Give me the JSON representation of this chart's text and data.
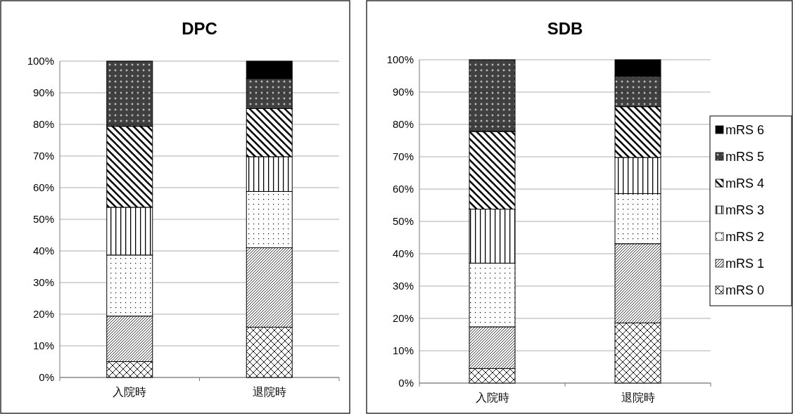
{
  "chart_data": [
    {
      "type": "bar",
      "title": "DPC",
      "categories": [
        "入院時",
        "退院時"
      ],
      "stacked": true,
      "legend": false,
      "grid": "y",
      "ylim": [
        0,
        100
      ],
      "yticks": [
        {
          "value": 0,
          "label": "0%"
        },
        {
          "value": 10,
          "label": "10%"
        },
        {
          "value": 20,
          "label": "20%"
        },
        {
          "value": 30,
          "label": "30%"
        },
        {
          "value": 40,
          "label": "40%"
        },
        {
          "value": 50,
          "label": "50%"
        },
        {
          "value": 60,
          "label": "60%"
        },
        {
          "value": 70,
          "label": "70%"
        },
        {
          "value": 80,
          "label": "80%"
        },
        {
          "value": 90,
          "label": "90%"
        },
        {
          "value": 100,
          "label": "100%"
        }
      ],
      "series": [
        {
          "color": "#000000",
          "values": [
            5,
            15.9
          ]
        },
        {
          "color": "#000000",
          "values": [
            14.4,
            25.1
          ]
        },
        {
          "color": "#000000",
          "values": [
            19.3,
            17.8
          ]
        },
        {
          "color": "#000000",
          "values": [
            15.1,
            11.0
          ]
        },
        {
          "color": "#000000",
          "values": [
            25.6,
            15.2
          ]
        },
        {
          "color": "#000000",
          "values": [
            20.6,
            9.5
          ]
        },
        {
          "color": "#000000",
          "values": [
            0,
            5.5
          ]
        }
      ]
    },
    {
      "type": "bar",
      "title": "SDB",
      "categories": [
        "入院時",
        "退院時"
      ],
      "stacked": true,
      "legend": "right",
      "grid": "y",
      "ylim": [
        0,
        100
      ],
      "yticks": [
        {
          "value": 0,
          "label": "0%"
        },
        {
          "value": 10,
          "label": "10%"
        },
        {
          "value": 20,
          "label": "20%"
        },
        {
          "value": 30,
          "label": "30%"
        },
        {
          "value": 40,
          "label": "40%"
        },
        {
          "value": 50,
          "label": "50%"
        },
        {
          "value": 60,
          "label": "60%"
        },
        {
          "value": 70,
          "label": "70%"
        },
        {
          "value": 80,
          "label": "80%"
        },
        {
          "value": 90,
          "label": "90%"
        },
        {
          "value": 100,
          "label": "100%"
        }
      ],
      "series": [
        {
          "name": "mRS 0",
          "color": "#000000",
          "values": [
            4.5,
            18.6
          ]
        },
        {
          "name": "mRS 1",
          "color": "#000000",
          "values": [
            12.9,
            24.5
          ]
        },
        {
          "name": "mRS 2",
          "color": "#000000",
          "values": [
            19.7,
            15.5
          ]
        },
        {
          "name": "mRS 3",
          "color": "#000000",
          "values": [
            16.7,
            11.2
          ]
        },
        {
          "name": "mRS 4",
          "color": "#000000",
          "values": [
            24.0,
            15.7
          ]
        },
        {
          "name": "mRS 5",
          "color": "#000000",
          "values": [
            22.2,
            9.4
          ]
        },
        {
          "name": "mRS 6",
          "color": "#000000",
          "values": [
            0,
            5.1
          ]
        }
      ]
    }
  ]
}
